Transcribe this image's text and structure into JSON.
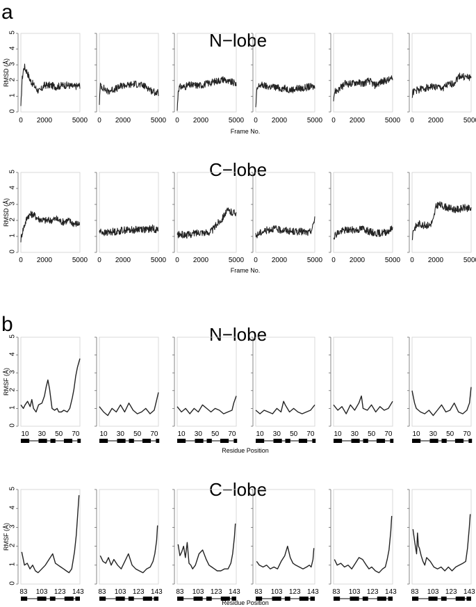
{
  "panels": [
    {
      "letter": "a"
    },
    {
      "letter": "b"
    }
  ],
  "colors": {
    "trace": "#222222",
    "frame": "#cfcfcf",
    "axis": "#555555",
    "bar": "#000000"
  },
  "chart_data": [
    {
      "type": "line",
      "group": "a",
      "title": "N−lobe",
      "xlabel": "Frame No.",
      "ylabel": "RMSD (Å)",
      "xlim": [
        0,
        5000
      ],
      "ylim": [
        0,
        5
      ],
      "x_ticks": [
        "0",
        "2000",
        "5000"
      ],
      "y_ticks": [
        "0",
        "1",
        "2",
        "3",
        "4",
        "5"
      ],
      "series": [
        {
          "x": [
            0,
            100,
            200,
            300,
            400,
            500,
            600,
            700,
            800,
            1000,
            1200,
            1400,
            1600,
            1800,
            2000,
            2500,
            3000,
            3500,
            4000,
            4500,
            5000
          ],
          "values": [
            0.2,
            2.0,
            2.6,
            2.9,
            2.7,
            2.6,
            2.4,
            2.2,
            2.0,
            1.8,
            1.6,
            1.4,
            1.3,
            1.5,
            1.7,
            1.7,
            1.6,
            1.7,
            1.7,
            1.6,
            1.7
          ]
        },
        {
          "x": [
            0,
            100,
            200,
            400,
            700,
            1000,
            1500,
            2000,
            2500,
            3000,
            3500,
            4000,
            4500,
            5000
          ],
          "values": [
            0.6,
            1.8,
            1.6,
            1.5,
            1.3,
            1.4,
            1.5,
            1.7,
            1.7,
            1.8,
            1.7,
            1.6,
            1.3,
            1.2
          ]
        },
        {
          "x": [
            0,
            100,
            300,
            600,
            1000,
            1500,
            2000,
            2500,
            3000,
            3500,
            4000,
            4300,
            4600,
            5000
          ],
          "values": [
            0.1,
            1.5,
            1.6,
            1.6,
            1.7,
            1.7,
            1.7,
            1.8,
            1.9,
            2.0,
            2.1,
            1.9,
            1.9,
            1.8
          ]
        },
        {
          "x": [
            0,
            100,
            300,
            600,
            1000,
            1500,
            2000,
            2500,
            3000,
            3500,
            4000,
            4500,
            5000
          ],
          "values": [
            0.2,
            1.4,
            1.7,
            1.7,
            1.6,
            1.6,
            1.5,
            1.5,
            1.4,
            1.5,
            1.5,
            1.6,
            1.6
          ]
        },
        {
          "x": [
            0,
            100,
            400,
            700,
            1000,
            1500,
            2000,
            2500,
            3000,
            3500,
            4000,
            4500,
            5000
          ],
          "values": [
            0.9,
            1.3,
            1.4,
            1.6,
            1.8,
            1.8,
            1.9,
            1.8,
            2.0,
            1.7,
            1.9,
            2.0,
            2.1
          ]
        },
        {
          "x": [
            0,
            100,
            500,
            1000,
            1500,
            2000,
            2500,
            3000,
            3500,
            3800,
            4000,
            4500,
            5000
          ],
          "values": [
            1.0,
            1.3,
            1.4,
            1.5,
            1.6,
            1.6,
            1.5,
            1.7,
            1.8,
            2.1,
            2.3,
            2.2,
            2.2
          ]
        }
      ]
    },
    {
      "type": "line",
      "group": "a",
      "title": "C−lobe",
      "xlabel": "Frame No.",
      "ylabel": "RMSD (Å)",
      "xlim": [
        0,
        5000
      ],
      "ylim": [
        0,
        5
      ],
      "x_ticks": [
        "0",
        "2000",
        "5000"
      ],
      "y_ticks": [
        "0",
        "1",
        "2",
        "3",
        "4",
        "5"
      ],
      "series": [
        {
          "x": [
            0,
            100,
            300,
            600,
            1000,
            1500,
            2000,
            2500,
            3000,
            3500,
            4000,
            4500,
            5000
          ],
          "values": [
            0.8,
            1.2,
            1.7,
            2.3,
            2.4,
            2.1,
            2.0,
            2.0,
            2.1,
            1.9,
            2.0,
            1.8,
            1.8
          ]
        },
        {
          "x": [
            0,
            200,
            500,
            1000,
            1500,
            2000,
            2500,
            3000,
            3500,
            4000,
            4500,
            5000
          ],
          "values": [
            1.3,
            1.3,
            1.2,
            1.3,
            1.3,
            1.4,
            1.4,
            1.4,
            1.5,
            1.4,
            1.5,
            1.4
          ]
        },
        {
          "x": [
            0,
            500,
            1000,
            1500,
            2000,
            2500,
            3000,
            3200,
            3500,
            3800,
            4000,
            4300,
            4600,
            5000
          ],
          "values": [
            1.1,
            1.1,
            1.1,
            1.2,
            1.3,
            1.2,
            1.4,
            1.6,
            1.9,
            2.1,
            2.4,
            2.6,
            2.5,
            2.5
          ]
        },
        {
          "x": [
            0,
            300,
            600,
            1000,
            1500,
            2000,
            2500,
            3000,
            3500,
            4000,
            4500,
            4800,
            5000
          ],
          "values": [
            1.0,
            1.2,
            1.3,
            1.4,
            1.5,
            1.4,
            1.4,
            1.3,
            1.3,
            1.3,
            1.2,
            1.5,
            2.2
          ]
        },
        {
          "x": [
            0,
            300,
            600,
            1000,
            1500,
            2000,
            2500,
            3000,
            3500,
            4000,
            4500,
            5000
          ],
          "values": [
            1.0,
            1.2,
            1.3,
            1.4,
            1.4,
            1.4,
            1.5,
            1.3,
            1.2,
            1.2,
            1.3,
            1.5
          ]
        },
        {
          "x": [
            0,
            100,
            300,
            600,
            1000,
            1500,
            1800,
            2000,
            2200,
            2600,
            3000,
            3500,
            4000,
            4500,
            5000
          ],
          "values": [
            0.8,
            1.4,
            1.6,
            1.8,
            1.7,
            1.7,
            2.0,
            2.8,
            3.0,
            2.9,
            2.8,
            2.7,
            2.7,
            2.8,
            2.7
          ]
        }
      ]
    },
    {
      "type": "line",
      "group": "b",
      "title": "N−lobe",
      "xlabel": "Residue Position",
      "ylabel": "RMSF (Å)",
      "xlim": [
        5,
        75
      ],
      "ylim": [
        0,
        5
      ],
      "x_ticks": [
        "10",
        "30",
        "50",
        "70"
      ],
      "y_ticks": [
        "0",
        "1",
        "2",
        "3",
        "4",
        "5"
      ],
      "series": [
        {
          "x": [
            5,
            8,
            10,
            13,
            16,
            18,
            20,
            23,
            26,
            30,
            33,
            35,
            37,
            39,
            42,
            45,
            48,
            50,
            53,
            56,
            60,
            63,
            66,
            68,
            70,
            72,
            75
          ],
          "values": [
            1.2,
            1.0,
            1.2,
            1.4,
            1.1,
            1.5,
            1.0,
            0.8,
            1.2,
            1.3,
            1.7,
            2.2,
            2.6,
            2.1,
            1.0,
            0.9,
            1.0,
            0.8,
            0.8,
            0.9,
            0.8,
            1.0,
            1.6,
            2.1,
            2.8,
            3.3,
            3.8
          ]
        },
        {
          "x": [
            5,
            10,
            15,
            20,
            25,
            30,
            35,
            40,
            45,
            50,
            55,
            60,
            65,
            70,
            72,
            75
          ],
          "values": [
            1.1,
            0.8,
            0.6,
            1.0,
            0.8,
            1.2,
            0.8,
            1.3,
            0.9,
            0.7,
            0.8,
            1.0,
            0.7,
            0.9,
            1.3,
            1.9
          ]
        },
        {
          "x": [
            5,
            10,
            15,
            20,
            25,
            30,
            35,
            40,
            45,
            50,
            55,
            60,
            65,
            70,
            72,
            75
          ],
          "values": [
            1.1,
            0.8,
            1.0,
            0.7,
            1.0,
            0.8,
            1.2,
            1.0,
            0.8,
            1.0,
            0.9,
            0.7,
            0.8,
            0.9,
            1.3,
            1.7
          ]
        },
        {
          "x": [
            5,
            10,
            15,
            20,
            25,
            30,
            35,
            38,
            40,
            45,
            50,
            55,
            60,
            65,
            70,
            75
          ],
          "values": [
            0.9,
            0.7,
            0.9,
            0.8,
            0.7,
            1.0,
            0.8,
            1.4,
            1.2,
            0.8,
            1.0,
            0.8,
            0.7,
            0.8,
            0.9,
            1.2
          ]
        },
        {
          "x": [
            5,
            10,
            15,
            20,
            25,
            30,
            35,
            38,
            40,
            45,
            50,
            55,
            60,
            65,
            70,
            75
          ],
          "values": [
            1.2,
            0.9,
            1.1,
            0.7,
            1.2,
            0.9,
            1.3,
            1.7,
            1.0,
            0.9,
            1.2,
            0.8,
            1.1,
            0.9,
            1.0,
            1.4
          ]
        },
        {
          "x": [
            5,
            8,
            10,
            15,
            20,
            25,
            30,
            35,
            40,
            45,
            50,
            55,
            60,
            65,
            70,
            73,
            75
          ],
          "values": [
            2.0,
            1.3,
            1.0,
            0.8,
            0.7,
            0.9,
            0.6,
            0.9,
            1.2,
            0.8,
            0.9,
            1.3,
            0.8,
            0.7,
            0.9,
            1.3,
            2.2
          ]
        }
      ]
    },
    {
      "type": "line",
      "group": "b",
      "title": "C−lobe",
      "xlabel": "Residue Position",
      "ylabel": "RMSF (Å)",
      "xlim": [
        80,
        145
      ],
      "ylim": [
        0,
        5
      ],
      "x_ticks": [
        "83",
        "103",
        "123",
        "143"
      ],
      "y_ticks": [
        "0",
        "1",
        "2",
        "3",
        "4",
        "5"
      ],
      "series": [
        {
          "x": [
            81,
            84,
            87,
            90,
            93,
            96,
            99,
            103,
            107,
            111,
            115,
            118,
            121,
            124,
            127,
            130,
            133,
            136,
            139,
            141,
            143,
            144
          ],
          "values": [
            1.7,
            1.0,
            1.1,
            0.8,
            1.0,
            0.7,
            0.6,
            0.8,
            1.0,
            1.3,
            1.6,
            1.1,
            1.0,
            0.9,
            0.8,
            0.7,
            0.6,
            0.8,
            1.7,
            2.6,
            4.0,
            4.7
          ]
        },
        {
          "x": [
            81,
            84,
            87,
            90,
            93,
            96,
            100,
            104,
            108,
            112,
            116,
            120,
            124,
            128,
            132,
            136,
            139,
            141,
            143,
            144
          ],
          "values": [
            1.5,
            1.2,
            1.1,
            1.4,
            1.0,
            1.3,
            1.0,
            0.8,
            1.2,
            1.6,
            1.0,
            0.8,
            0.7,
            0.6,
            0.8,
            0.9,
            1.2,
            1.6,
            2.3,
            3.1
          ]
        },
        {
          "x": [
            81,
            83,
            85,
            87,
            89,
            91,
            93,
            95,
            97,
            100,
            104,
            108,
            112,
            115,
            118,
            121,
            124,
            128,
            132,
            136,
            139,
            141,
            143,
            144
          ],
          "values": [
            2.1,
            1.5,
            1.7,
            2.0,
            1.4,
            2.2,
            1.1,
            1.0,
            0.8,
            1.0,
            1.6,
            1.8,
            1.3,
            1.0,
            0.9,
            0.8,
            0.7,
            0.7,
            0.8,
            0.8,
            1.1,
            1.6,
            2.5,
            3.2
          ]
        },
        {
          "x": [
            81,
            84,
            88,
            92,
            96,
            100,
            104,
            108,
            112,
            115,
            118,
            121,
            124,
            128,
            132,
            136,
            139,
            141,
            143,
            144
          ],
          "values": [
            1.2,
            1.0,
            0.9,
            1.0,
            0.8,
            0.9,
            0.8,
            1.2,
            1.5,
            2.0,
            1.4,
            1.1,
            1.0,
            0.9,
            0.8,
            0.9,
            1.0,
            0.9,
            1.3,
            1.9
          ]
        },
        {
          "x": [
            81,
            84,
            88,
            92,
            96,
            100,
            104,
            108,
            112,
            116,
            119,
            122,
            126,
            130,
            134,
            137,
            139,
            141,
            143,
            144
          ],
          "values": [
            1.3,
            1.0,
            1.1,
            0.9,
            1.0,
            0.8,
            1.1,
            1.4,
            1.3,
            1.0,
            0.8,
            0.9,
            0.7,
            0.6,
            0.8,
            0.9,
            1.3,
            1.8,
            2.8,
            3.6
          ]
        },
        {
          "x": [
            81,
            83,
            85,
            86,
            87,
            88,
            90,
            92,
            94,
            96,
            100,
            104,
            108,
            112,
            116,
            120,
            124,
            128,
            132,
            136,
            139,
            141,
            143,
            144
          ],
          "values": [
            2.9,
            2.2,
            1.6,
            2.7,
            2.0,
            1.9,
            1.5,
            1.2,
            1.0,
            1.4,
            1.2,
            0.9,
            0.8,
            0.9,
            0.7,
            0.9,
            0.7,
            0.9,
            1.0,
            1.1,
            1.2,
            1.9,
            3.0,
            3.7
          ]
        }
      ]
    }
  ]
}
